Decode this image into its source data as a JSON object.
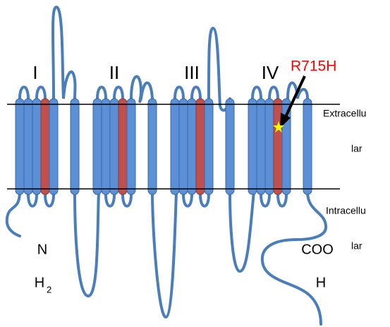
{
  "domains": [
    {
      "label": "I"
    },
    {
      "label": "II"
    },
    {
      "label": "III"
    },
    {
      "label": "IV"
    }
  ],
  "mutation": {
    "label": "R715H"
  },
  "regions": [
    {
      "lines": [
        "Extracellu",
        "lar"
      ]
    },
    {
      "lines": [
        "Intracellu",
        "lar"
      ]
    }
  ],
  "n_terminus": {
    "lines": [
      "N",
      "H"
    ],
    "subscript": "2"
  },
  "c_terminus": {
    "lines": [
      "COO",
      "H"
    ]
  }
}
